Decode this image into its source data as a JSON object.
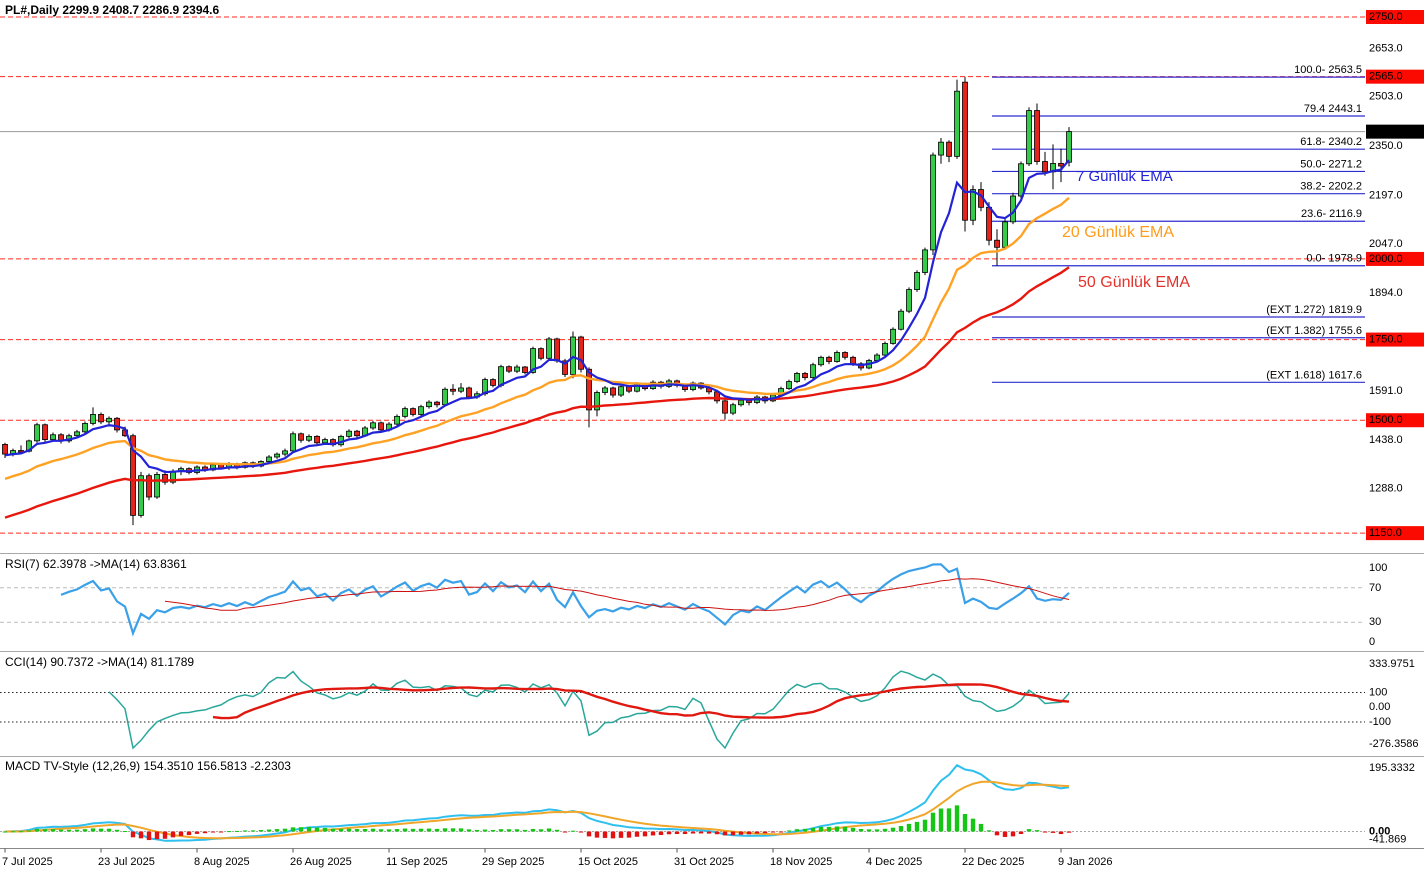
{
  "window": {
    "title": "PL#,Daily 2299.9 2408.7 2286.9 2394.6"
  },
  "colors": {
    "candle_up": "#35cb4a",
    "candle_down": "#e3241c",
    "candle_border": "#000000",
    "ema7": "#2223d6",
    "ema20": "#ffa224",
    "ema50": "#e8170e",
    "fib": "#2d2dd0",
    "level_red": "#ff2a1f",
    "bid_line": "#999999",
    "axis_label_red_bg": "#fa0a00",
    "axis_label_black_bg": "#000000",
    "rsi_line": "#3aa0e8",
    "rsi_ma": "#cc1111",
    "rsi_levels": "#bbbbbb",
    "cci_line": "#2aa79b",
    "cci_ma": "#e01810",
    "cci_levels": "#222222",
    "macd_line": "#2fc0f0",
    "macd_signal": "#f0a62a",
    "hist_up": "#17c517",
    "hist_down": "#e21212",
    "macd_zero": "#aaaaaa",
    "ema7_label": "#2222d8",
    "ema20_label": "#ff9c1a",
    "ema50_label": "#e4322b"
  },
  "ema_labels": {
    "ema7": {
      "text": "7 Günlük EMA"
    },
    "ema20": {
      "text": "20 Günlük EMA"
    },
    "ema50": {
      "text": "50 Günlük EMA"
    }
  },
  "panels": {
    "rsi": {
      "title": "RSI(7) 62.3978  ->MA(14) 63.8361",
      "range": {
        "min": 0,
        "max": 100
      },
      "levels": [
        70,
        30
      ],
      "tick_labels": [
        "100",
        "70",
        "30",
        "0"
      ]
    },
    "cci": {
      "title": "CCI(14) 90.7372  ->MA(14) 81.1789",
      "range": {
        "min": -276.3586,
        "max": 333.9751
      },
      "levels": [
        100,
        -100
      ],
      "tick_labels": [
        "333.9751",
        "100",
        "0.00",
        "-100",
        "-276.3586"
      ]
    },
    "macd": {
      "title": "MACD TV-Style (12,26,9) 154.3510 156.5813 -2.2303",
      "range": {
        "min": -41.869,
        "max": 195.3332
      },
      "tick_labels": [
        "195.3332",
        "0.00",
        "-41.869"
      ]
    }
  },
  "chart_data": {
    "type": "candlestick",
    "symbol": "PL#",
    "timeframe": "Daily",
    "ohlc_current": {
      "open": 2299.9,
      "high": 2408.7,
      "low": 2286.9,
      "close": 2394.6
    },
    "x_dates": [
      "7 Jul 2025",
      "23 Jul 2025",
      "8 Aug 2025",
      "26 Aug 2025",
      "11 Sep 2025",
      "29 Sep 2025",
      "15 Oct 2025",
      "31 Oct 2025",
      "18 Nov 2025",
      "4 Dec 2025",
      "22 Dec 2025",
      "9 Jan 2026"
    ],
    "x_date_interval": 12,
    "price_axis": {
      "plain_ticks": [
        {
          "label": "2653.0",
          "value": 2653
        },
        {
          "label": "2503.0",
          "value": 2503
        },
        {
          "label": "2350.0",
          "value": 2350
        },
        {
          "label": "2197.0",
          "value": 2197
        },
        {
          "label": "2047.0",
          "value": 2047
        },
        {
          "label": "1894.0",
          "value": 1894
        },
        {
          "label": "1591.0",
          "value": 1591
        },
        {
          "label": "1438.0",
          "value": 1438
        },
        {
          "label": "1288.0",
          "value": 1288
        }
      ],
      "red_ticks": [
        {
          "label": "2750.0",
          "value": 2750
        },
        {
          "label": "2565.0",
          "value": 2565
        },
        {
          "label": "2000.0",
          "value": 2000
        },
        {
          "label": "1750.0",
          "value": 1750
        },
        {
          "label": "1500.0",
          "value": 1500
        },
        {
          "label": "1150.0",
          "value": 1150
        }
      ],
      "bid": {
        "label": "2394.6",
        "value": 2394.6
      }
    },
    "red_levels": [
      2750,
      2565,
      2000,
      1750,
      1500,
      1150
    ],
    "fib_levels": [
      {
        "label": "100.0- 2563.5",
        "value": 2563.5
      },
      {
        "label": "79.4 2443.1",
        "value": 2443.1
      },
      {
        "label": "61.8- 2340.2",
        "value": 2340.2
      },
      {
        "label": "50.0- 2271.2",
        "value": 2271.2
      },
      {
        "label": "38.2- 2202.2",
        "value": 2202.2
      },
      {
        "label": "23.6- 2116.9",
        "value": 2116.9
      },
      {
        "label": "0.0- 1978.9",
        "value": 1978.9
      },
      {
        "label": "(EXT 1.272)  1819.9",
        "value": 1819.9
      },
      {
        "label": "(EXT 1.382)  1755.6",
        "value": 1755.6
      },
      {
        "label": "(EXT 1.618)  1617.6",
        "value": 1617.6
      }
    ],
    "indicators": {
      "ema_periods": [
        7,
        20,
        50
      ],
      "ema_seeds": [
        1390,
        1310,
        1190
      ],
      "rsi_period": 7,
      "rsi_ma_period": 14,
      "cci_period": 14,
      "cci_ma_period": 14,
      "macd_params": [
        12,
        26,
        9
      ]
    },
    "candles": [
      [
        1425,
        1430,
        1383,
        1395
      ],
      [
        1395,
        1412,
        1388,
        1406
      ],
      [
        1406,
        1422,
        1398,
        1404
      ],
      [
        1404,
        1440,
        1400,
        1436
      ],
      [
        1436,
        1492,
        1430,
        1486
      ],
      [
        1486,
        1490,
        1432,
        1440
      ],
      [
        1440,
        1462,
        1434,
        1455
      ],
      [
        1455,
        1460,
        1428,
        1436
      ],
      [
        1436,
        1458,
        1430,
        1452
      ],
      [
        1452,
        1470,
        1446,
        1464
      ],
      [
        1464,
        1496,
        1458,
        1490
      ],
      [
        1490,
        1540,
        1484,
        1518
      ],
      [
        1518,
        1524,
        1488,
        1495
      ],
      [
        1495,
        1512,
        1480,
        1506
      ],
      [
        1506,
        1510,
        1462,
        1470
      ],
      [
        1470,
        1480,
        1448,
        1452
      ],
      [
        1452,
        1458,
        1175,
        1205
      ],
      [
        1205,
        1340,
        1198,
        1328
      ],
      [
        1328,
        1335,
        1252,
        1262
      ],
      [
        1262,
        1340,
        1256,
        1332
      ],
      [
        1332,
        1345,
        1300,
        1308
      ],
      [
        1308,
        1348,
        1302,
        1342
      ],
      [
        1342,
        1356,
        1330,
        1350
      ],
      [
        1350,
        1354,
        1332,
        1338
      ],
      [
        1338,
        1360,
        1332,
        1355
      ],
      [
        1355,
        1360,
        1340,
        1346
      ],
      [
        1346,
        1368,
        1342,
        1362
      ],
      [
        1362,
        1366,
        1348,
        1352
      ],
      [
        1352,
        1370,
        1346,
        1365
      ],
      [
        1365,
        1368,
        1348,
        1354
      ],
      [
        1354,
        1372,
        1350,
        1368
      ],
      [
        1368,
        1372,
        1352,
        1358
      ],
      [
        1358,
        1376,
        1354,
        1372
      ],
      [
        1372,
        1392,
        1368,
        1386
      ],
      [
        1386,
        1400,
        1380,
        1395
      ],
      [
        1395,
        1412,
        1388,
        1405
      ],
      [
        1405,
        1465,
        1400,
        1458
      ],
      [
        1458,
        1462,
        1430,
        1438
      ],
      [
        1438,
        1456,
        1432,
        1450
      ],
      [
        1450,
        1454,
        1424,
        1430
      ],
      [
        1430,
        1446,
        1424,
        1440
      ],
      [
        1440,
        1444,
        1418,
        1424
      ],
      [
        1424,
        1455,
        1418,
        1450
      ],
      [
        1450,
        1472,
        1444,
        1466
      ],
      [
        1466,
        1470,
        1446,
        1452
      ],
      [
        1452,
        1482,
        1448,
        1476
      ],
      [
        1476,
        1498,
        1470,
        1492
      ],
      [
        1492,
        1496,
        1464,
        1470
      ],
      [
        1470,
        1494,
        1465,
        1488
      ],
      [
        1488,
        1518,
        1482,
        1512
      ],
      [
        1512,
        1542,
        1506,
        1536
      ],
      [
        1536,
        1540,
        1512,
        1518
      ],
      [
        1518,
        1548,
        1512,
        1542
      ],
      [
        1542,
        1562,
        1536,
        1556
      ],
      [
        1556,
        1560,
        1540,
        1548
      ],
      [
        1548,
        1602,
        1544,
        1596
      ],
      [
        1596,
        1612,
        1578,
        1590
      ],
      [
        1590,
        1615,
        1584,
        1600
      ],
      [
        1600,
        1604,
        1566,
        1572
      ],
      [
        1572,
        1590,
        1566,
        1582
      ],
      [
        1582,
        1632,
        1576,
        1626
      ],
      [
        1626,
        1630,
        1602,
        1608
      ],
      [
        1608,
        1672,
        1602,
        1666
      ],
      [
        1666,
        1670,
        1646,
        1652
      ],
      [
        1652,
        1672,
        1646,
        1665
      ],
      [
        1665,
        1668,
        1642,
        1648
      ],
      [
        1648,
        1728,
        1644,
        1722
      ],
      [
        1722,
        1726,
        1686,
        1692
      ],
      [
        1692,
        1758,
        1688,
        1752
      ],
      [
        1752,
        1756,
        1678,
        1684
      ],
      [
        1684,
        1690,
        1634,
        1642
      ],
      [
        1642,
        1775,
        1630,
        1758
      ],
      [
        1758,
        1762,
        1648,
        1658
      ],
      [
        1658,
        1664,
        1478,
        1532
      ],
      [
        1532,
        1592,
        1512,
        1586
      ],
      [
        1586,
        1606,
        1578,
        1600
      ],
      [
        1600,
        1604,
        1570,
        1578
      ],
      [
        1578,
        1610,
        1572,
        1604
      ],
      [
        1604,
        1608,
        1584,
        1590
      ],
      [
        1590,
        1618,
        1586,
        1612
      ],
      [
        1612,
        1616,
        1592,
        1598
      ],
      [
        1598,
        1624,
        1594,
        1618
      ],
      [
        1618,
        1622,
        1598,
        1605
      ],
      [
        1605,
        1628,
        1600,
        1622
      ],
      [
        1622,
        1626,
        1602,
        1608
      ],
      [
        1608,
        1612,
        1588,
        1595
      ],
      [
        1595,
        1620,
        1590,
        1615
      ],
      [
        1615,
        1618,
        1595,
        1600
      ],
      [
        1600,
        1605,
        1580,
        1588
      ],
      [
        1588,
        1592,
        1552,
        1560
      ],
      [
        1560,
        1565,
        1502,
        1522
      ],
      [
        1522,
        1554,
        1516,
        1548
      ],
      [
        1548,
        1568,
        1542,
        1562
      ],
      [
        1562,
        1566,
        1546,
        1555
      ],
      [
        1555,
        1578,
        1550,
        1572
      ],
      [
        1572,
        1576,
        1552,
        1560
      ],
      [
        1560,
        1584,
        1556,
        1578
      ],
      [
        1578,
        1604,
        1574,
        1598
      ],
      [
        1598,
        1626,
        1594,
        1620
      ],
      [
        1620,
        1650,
        1615,
        1645
      ],
      [
        1645,
        1650,
        1624,
        1632
      ],
      [
        1632,
        1678,
        1628,
        1672
      ],
      [
        1672,
        1700,
        1666,
        1695
      ],
      [
        1695,
        1700,
        1674,
        1682
      ],
      [
        1682,
        1716,
        1678,
        1710
      ],
      [
        1710,
        1714,
        1688,
        1695
      ],
      [
        1695,
        1700,
        1668,
        1675
      ],
      [
        1675,
        1680,
        1654,
        1662
      ],
      [
        1662,
        1690,
        1658,
        1685
      ],
      [
        1685,
        1708,
        1680,
        1702
      ],
      [
        1702,
        1744,
        1698,
        1738
      ],
      [
        1738,
        1788,
        1734,
        1782
      ],
      [
        1782,
        1845,
        1778,
        1838
      ],
      [
        1838,
        1912,
        1832,
        1905
      ],
      [
        1905,
        1965,
        1898,
        1958
      ],
      [
        1958,
        2035,
        1950,
        2028
      ],
      [
        2028,
        2330,
        2012,
        2322
      ],
      [
        2322,
        2375,
        2295,
        2362
      ],
      [
        2362,
        2368,
        2300,
        2318
      ],
      [
        2318,
        2556,
        2310,
        2520
      ],
      [
        2548,
        2563.5,
        2085,
        2120
      ],
      [
        2120,
        2228,
        2105,
        2215
      ],
      [
        2215,
        2238,
        2148,
        2160
      ],
      [
        2160,
        2176,
        2042,
        2058
      ],
      [
        2058,
        2092,
        1978.9,
        2036
      ],
      [
        2036,
        2125,
        2028,
        2115
      ],
      [
        2115,
        2205,
        2108,
        2195
      ],
      [
        2195,
        2302,
        2188,
        2295
      ],
      [
        2295,
        2470,
        2288,
        2460
      ],
      [
        2460,
        2482,
        2292,
        2302
      ],
      [
        2302,
        2332,
        2258,
        2270
      ],
      [
        2270,
        2355,
        2216,
        2296
      ],
      [
        2296,
        2342,
        2238,
        2288
      ],
      [
        2299.9,
        2408.7,
        2286.9,
        2394.6
      ]
    ]
  }
}
